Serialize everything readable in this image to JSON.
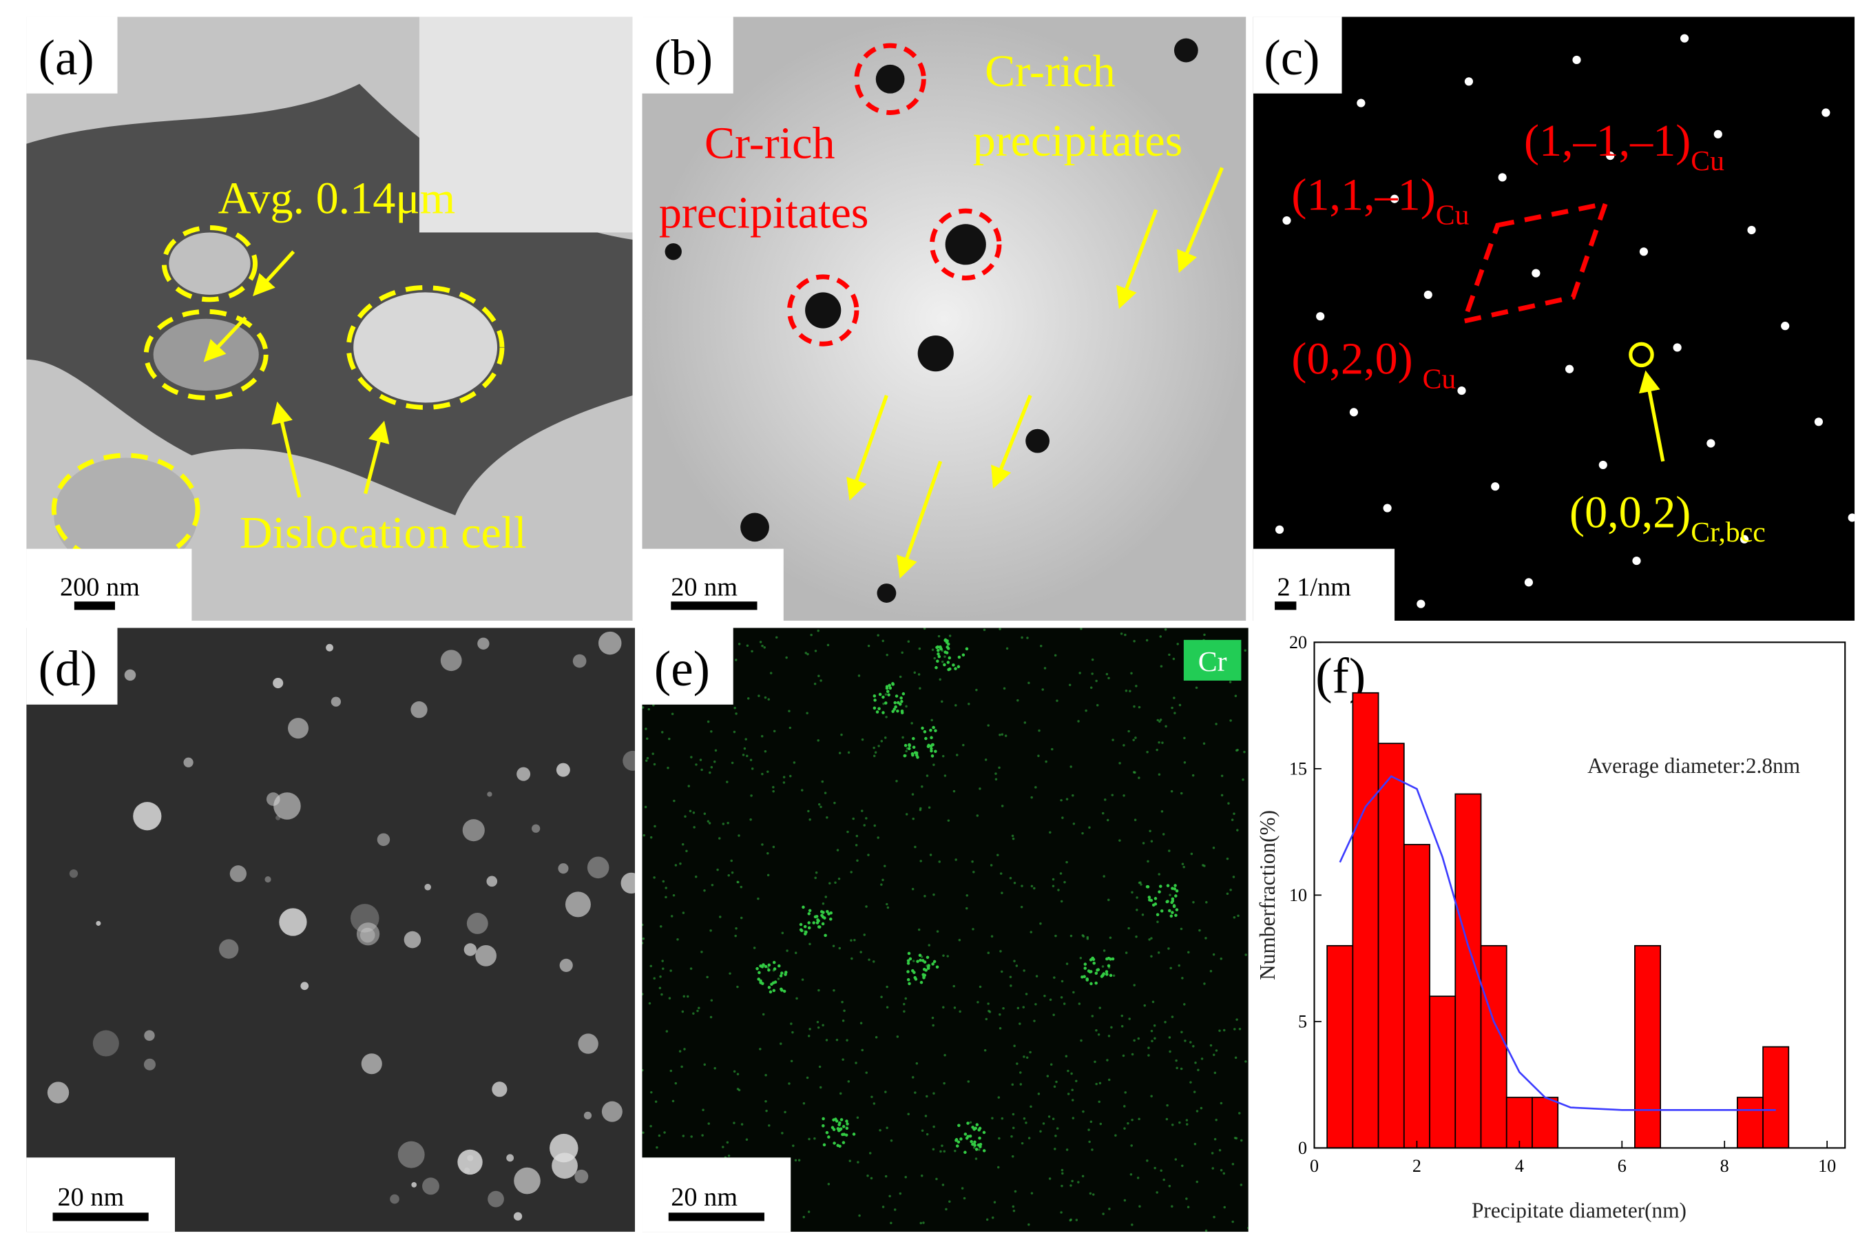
{
  "panels": [
    {
      "label": "(a)",
      "annotations": [
        "Avg. 0.14μm",
        "Dislocation cell"
      ],
      "scale_bar": "200 nm"
    },
    {
      "label": "(b)",
      "annotations": [
        [
          "Cr-rich",
          "precipitates"
        ],
        [
          "Cr-rich",
          "precipitates"
        ]
      ],
      "scale_bar": "20 nm"
    },
    {
      "label": "(c)",
      "spots": [
        {
          "text": "(1,1,–1)",
          "sub": "Cu"
        },
        {
          "text": "(1,–1,–1)",
          "sub": "Cu"
        },
        {
          "text": "(0,2,0)",
          "sub": "Cu"
        },
        {
          "text": "(0,0,2)",
          "sub": "Cr,bcc"
        }
      ],
      "scale_bar": "2 1/nm"
    },
    {
      "label": "(d)",
      "scale_bar": "20 nm"
    },
    {
      "label": "(e)",
      "element": "Cr",
      "scale_bar": "20 nm"
    }
  ],
  "chart_data": {
    "type": "histogram",
    "label": "(f)",
    "x_label": "Precipitate diameter(nm)",
    "y_label": "Numberfraction(%)",
    "annotation": "Average diameter:2.8nm",
    "bins": [
      0.25,
      0.75,
      1.25,
      1.75,
      2.25,
      2.75,
      3.25,
      3.75,
      4.25,
      4.75,
      5.25,
      5.75,
      6.25,
      6.75,
      7.25,
      7.75,
      8.25,
      8.75,
      9.25
    ],
    "counts": [
      8,
      18,
      16,
      12,
      6,
      14,
      8,
      2,
      2,
      0,
      0,
      0,
      8,
      0,
      0,
      0,
      2,
      4
    ],
    "color": "#ff0000",
    "curve": {
      "color": "#3c3cff",
      "x": [
        0.5,
        1.0,
        1.5,
        2.0,
        2.5,
        3.0,
        3.5,
        4.0,
        4.5,
        5.0,
        6.0,
        7.0,
        8.0,
        9.0
      ],
      "values": [
        11.3,
        13.5,
        14.7,
        14.2,
        11.5,
        8.0,
        5.0,
        3.0,
        2.0,
        1.6,
        1.5,
        1.5,
        1.5,
        1.5
      ]
    },
    "xlim": [
      0,
      10.35
    ],
    "ylim": [
      0,
      20
    ],
    "xticks": [
      0,
      2,
      4,
      6,
      8,
      10
    ],
    "yticks": [
      0,
      5,
      10,
      15,
      20
    ]
  }
}
